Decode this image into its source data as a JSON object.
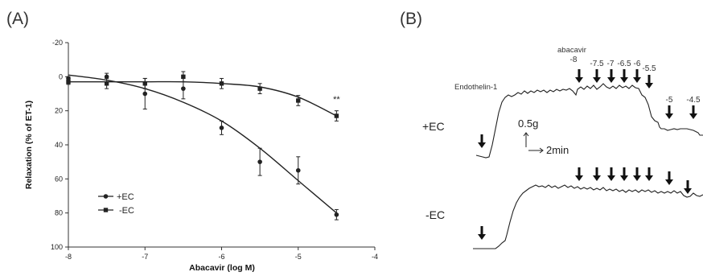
{
  "panel_a_label": "(A)",
  "panel_b_label": "(B)",
  "chart_data": [
    {
      "type": "line",
      "panel": "(A)",
      "xlabel": "Abacavir (log M)",
      "ylabel": "Relaxation (% of ET-1)",
      "xlim": [
        -8,
        -4
      ],
      "ylim": [
        -20,
        100
      ],
      "y_axis_inverted": true,
      "xticks": [
        "-8",
        "-7",
        "-6",
        "-5",
        "-4"
      ],
      "yticks": [
        "-20",
        "0",
        "20",
        "40",
        "60",
        "80",
        "100"
      ],
      "xtick_values": [
        -8,
        -7,
        -6,
        -5,
        -4
      ],
      "ytick_values": [
        -20,
        0,
        20,
        40,
        60,
        80,
        100
      ],
      "grid": false,
      "legend_position": "bottom-left",
      "annotation": "**",
      "annotation_x": -4.5,
      "annotation_y": 15,
      "series": [
        {
          "name": "+EC",
          "marker": "circle",
          "x": [
            -8,
            -7.5,
            -7,
            -6.5,
            -6,
            -5.5,
            -5,
            -4.5
          ],
          "y": [
            1,
            0,
            10,
            7,
            30,
            50,
            55,
            81
          ],
          "err": [
            1,
            2,
            9,
            6,
            4,
            8,
            8,
            3
          ],
          "fit": [
            -1,
            2,
            7,
            15,
            26,
            42,
            61,
            80
          ]
        },
        {
          "name": "-EC",
          "marker": "square",
          "x": [
            -8,
            -7.5,
            -7,
            -6.5,
            -6,
            -5.5,
            -5,
            -4.5
          ],
          "y": [
            3,
            4,
            4,
            0,
            4,
            7,
            14,
            23
          ],
          "err": [
            1.5,
            3,
            3,
            3,
            3,
            3,
            3,
            3
          ],
          "fit": [
            3,
            3,
            3,
            3,
            4,
            6,
            12,
            23
          ]
        }
      ]
    },
    {
      "type": "trace",
      "panel": "(B)",
      "agonist_label": "Endothelin-1",
      "drug_label": "abacavir",
      "concentration_labels": [
        "-8",
        "-7.5",
        "-7",
        "-6.5",
        "-6",
        "-5.5",
        "-5",
        "-4.5"
      ],
      "trace_labels": [
        "+EC",
        "-EC"
      ],
      "scale_y": "0.5g",
      "scale_x": "2min"
    }
  ]
}
